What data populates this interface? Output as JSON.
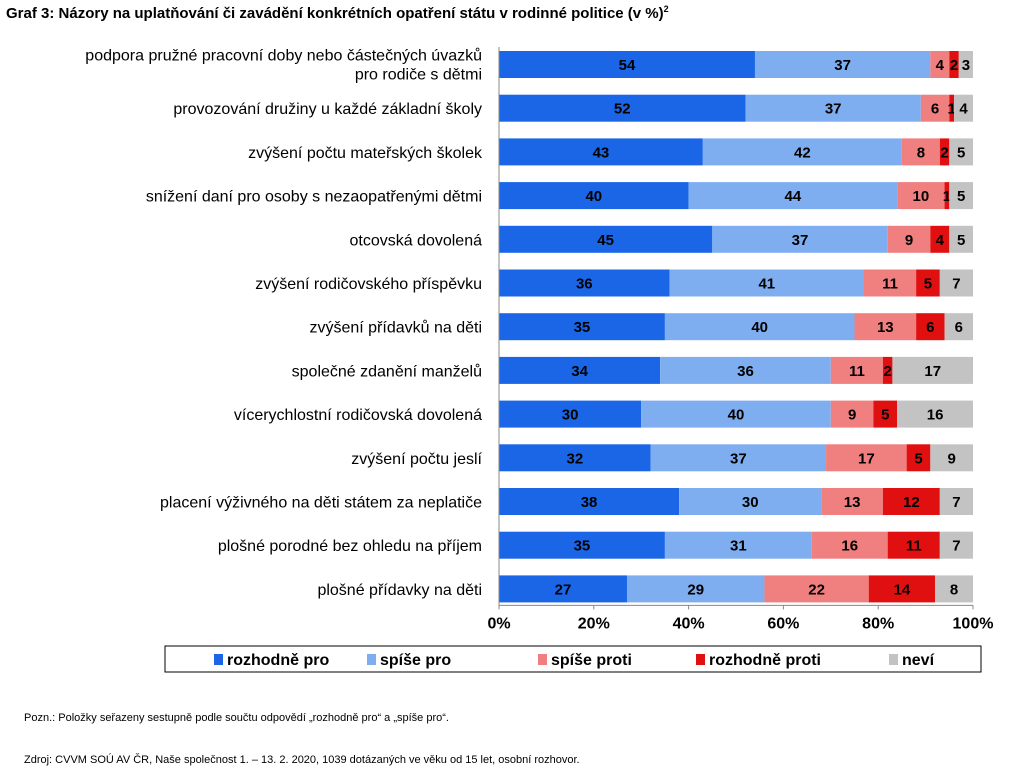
{
  "title": {
    "text": "Graf 3: Názory na uplatňování či zavádění konkrétních opatření státu v rodinné politice (v %)",
    "footnote_ref": "2"
  },
  "note": "Pozn.: Položky seřazeny sestupně podle součtu odpovědí „rozhodně pro“ a „spíše pro“.",
  "source": "Zdroj: CVVM SOÚ AV ČR, Naše společnost 1. – 13. 2. 2020, 1039 dotázaných ve věku od 15 let, osobní rozhovor.",
  "chart_data": {
    "type": "bar",
    "orientation": "horizontal",
    "stacked": true,
    "stack_mode": "percent",
    "categories": [
      [
        "podpora pružné pracovní doby nebo částečných úvazků",
        "pro rodiče s dětmi"
      ],
      [
        "provozování družiny u každé základní školy"
      ],
      [
        "zvýšení počtu mateřských školek"
      ],
      [
        "snížení daní pro osoby s nezaopatřenými dětmi"
      ],
      [
        "otcovská dovolená"
      ],
      [
        "zvýšení rodičovského příspěvku"
      ],
      [
        "zvýšení přídavků na děti"
      ],
      [
        "společné zdanění manželů"
      ],
      [
        "vícerychlostní rodičovská dovolená"
      ],
      [
        "zvýšení počtu jeslí"
      ],
      [
        "placení výživného na děti státem za neplatiče"
      ],
      [
        "plošné porodné bez ohledu na příjem"
      ],
      [
        "plošné přídavky na děti"
      ]
    ],
    "series": [
      {
        "name": "rozhodně pro",
        "color": "#1a66e6",
        "values": [
          54,
          52,
          43,
          40,
          45,
          36,
          35,
          34,
          30,
          32,
          38,
          35,
          27
        ]
      },
      {
        "name": "spíše pro",
        "color": "#7faef0",
        "values": [
          37,
          37,
          42,
          44,
          37,
          41,
          40,
          36,
          40,
          37,
          30,
          31,
          29
        ]
      },
      {
        "name": "spíše proti",
        "color": "#f07f7f",
        "values": [
          4,
          6,
          8,
          10,
          9,
          11,
          13,
          11,
          9,
          17,
          13,
          16,
          22
        ]
      },
      {
        "name": "rozhodně proti",
        "color": "#e01010",
        "values": [
          2,
          1,
          2,
          1,
          4,
          5,
          6,
          2,
          5,
          5,
          12,
          11,
          14
        ]
      },
      {
        "name": "neví",
        "color": "#c3c3c3",
        "values": [
          3,
          4,
          5,
          5,
          5,
          7,
          6,
          17,
          16,
          9,
          7,
          7,
          8
        ]
      }
    ],
    "x_ticks": [
      "0%",
      "20%",
      "40%",
      "60%",
      "80%",
      "100%"
    ],
    "xlim": [
      0,
      100
    ],
    "grid": false,
    "legend_position": "bottom"
  }
}
